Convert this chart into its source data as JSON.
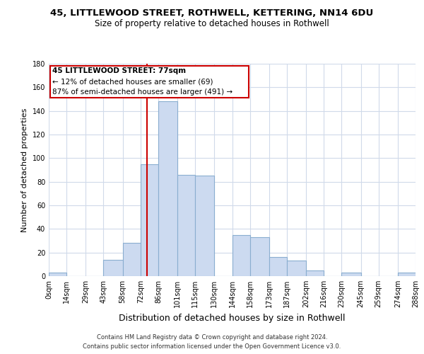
{
  "title": "45, LITTLEWOOD STREET, ROTHWELL, KETTERING, NN14 6DU",
  "subtitle": "Size of property relative to detached houses in Rothwell",
  "xlabel": "Distribution of detached houses by size in Rothwell",
  "ylabel": "Number of detached properties",
  "footer_line1": "Contains HM Land Registry data © Crown copyright and database right 2024.",
  "footer_line2": "Contains public sector information licensed under the Open Government Licence v3.0.",
  "annotation_line1": "45 LITTLEWOOD STREET: 77sqm",
  "annotation_line2": "← 12% of detached houses are smaller (69)",
  "annotation_line3": "87% of semi-detached houses are larger (491) →",
  "property_line_x": 77,
  "bar_edges": [
    0,
    14,
    29,
    43,
    58,
    72,
    86,
    101,
    115,
    130,
    144,
    158,
    173,
    187,
    202,
    216,
    230,
    245,
    259,
    274,
    288
  ],
  "bar_heights": [
    3,
    0,
    0,
    14,
    28,
    95,
    148,
    86,
    85,
    0,
    35,
    33,
    16,
    13,
    5,
    0,
    3,
    0,
    0,
    3
  ],
  "tick_labels": [
    "0sqm",
    "14sqm",
    "29sqm",
    "43sqm",
    "58sqm",
    "72sqm",
    "86sqm",
    "101sqm",
    "115sqm",
    "130sqm",
    "144sqm",
    "158sqm",
    "173sqm",
    "187sqm",
    "202sqm",
    "216sqm",
    "230sqm",
    "245sqm",
    "259sqm",
    "274sqm",
    "288sqm"
  ],
  "bar_color": "#ccdaf0",
  "bar_edge_color": "#8aaed0",
  "grid_color": "#d0daea",
  "annotation_box_edge": "#cc0000",
  "property_line_color": "#cc0000",
  "ylim": [
    0,
    180
  ],
  "yticks": [
    0,
    20,
    40,
    60,
    80,
    100,
    120,
    140,
    160,
    180
  ],
  "title_fontsize": 9.5,
  "subtitle_fontsize": 8.5,
  "ylabel_fontsize": 8,
  "xlabel_fontsize": 9,
  "tick_fontsize": 7,
  "footer_fontsize": 6
}
